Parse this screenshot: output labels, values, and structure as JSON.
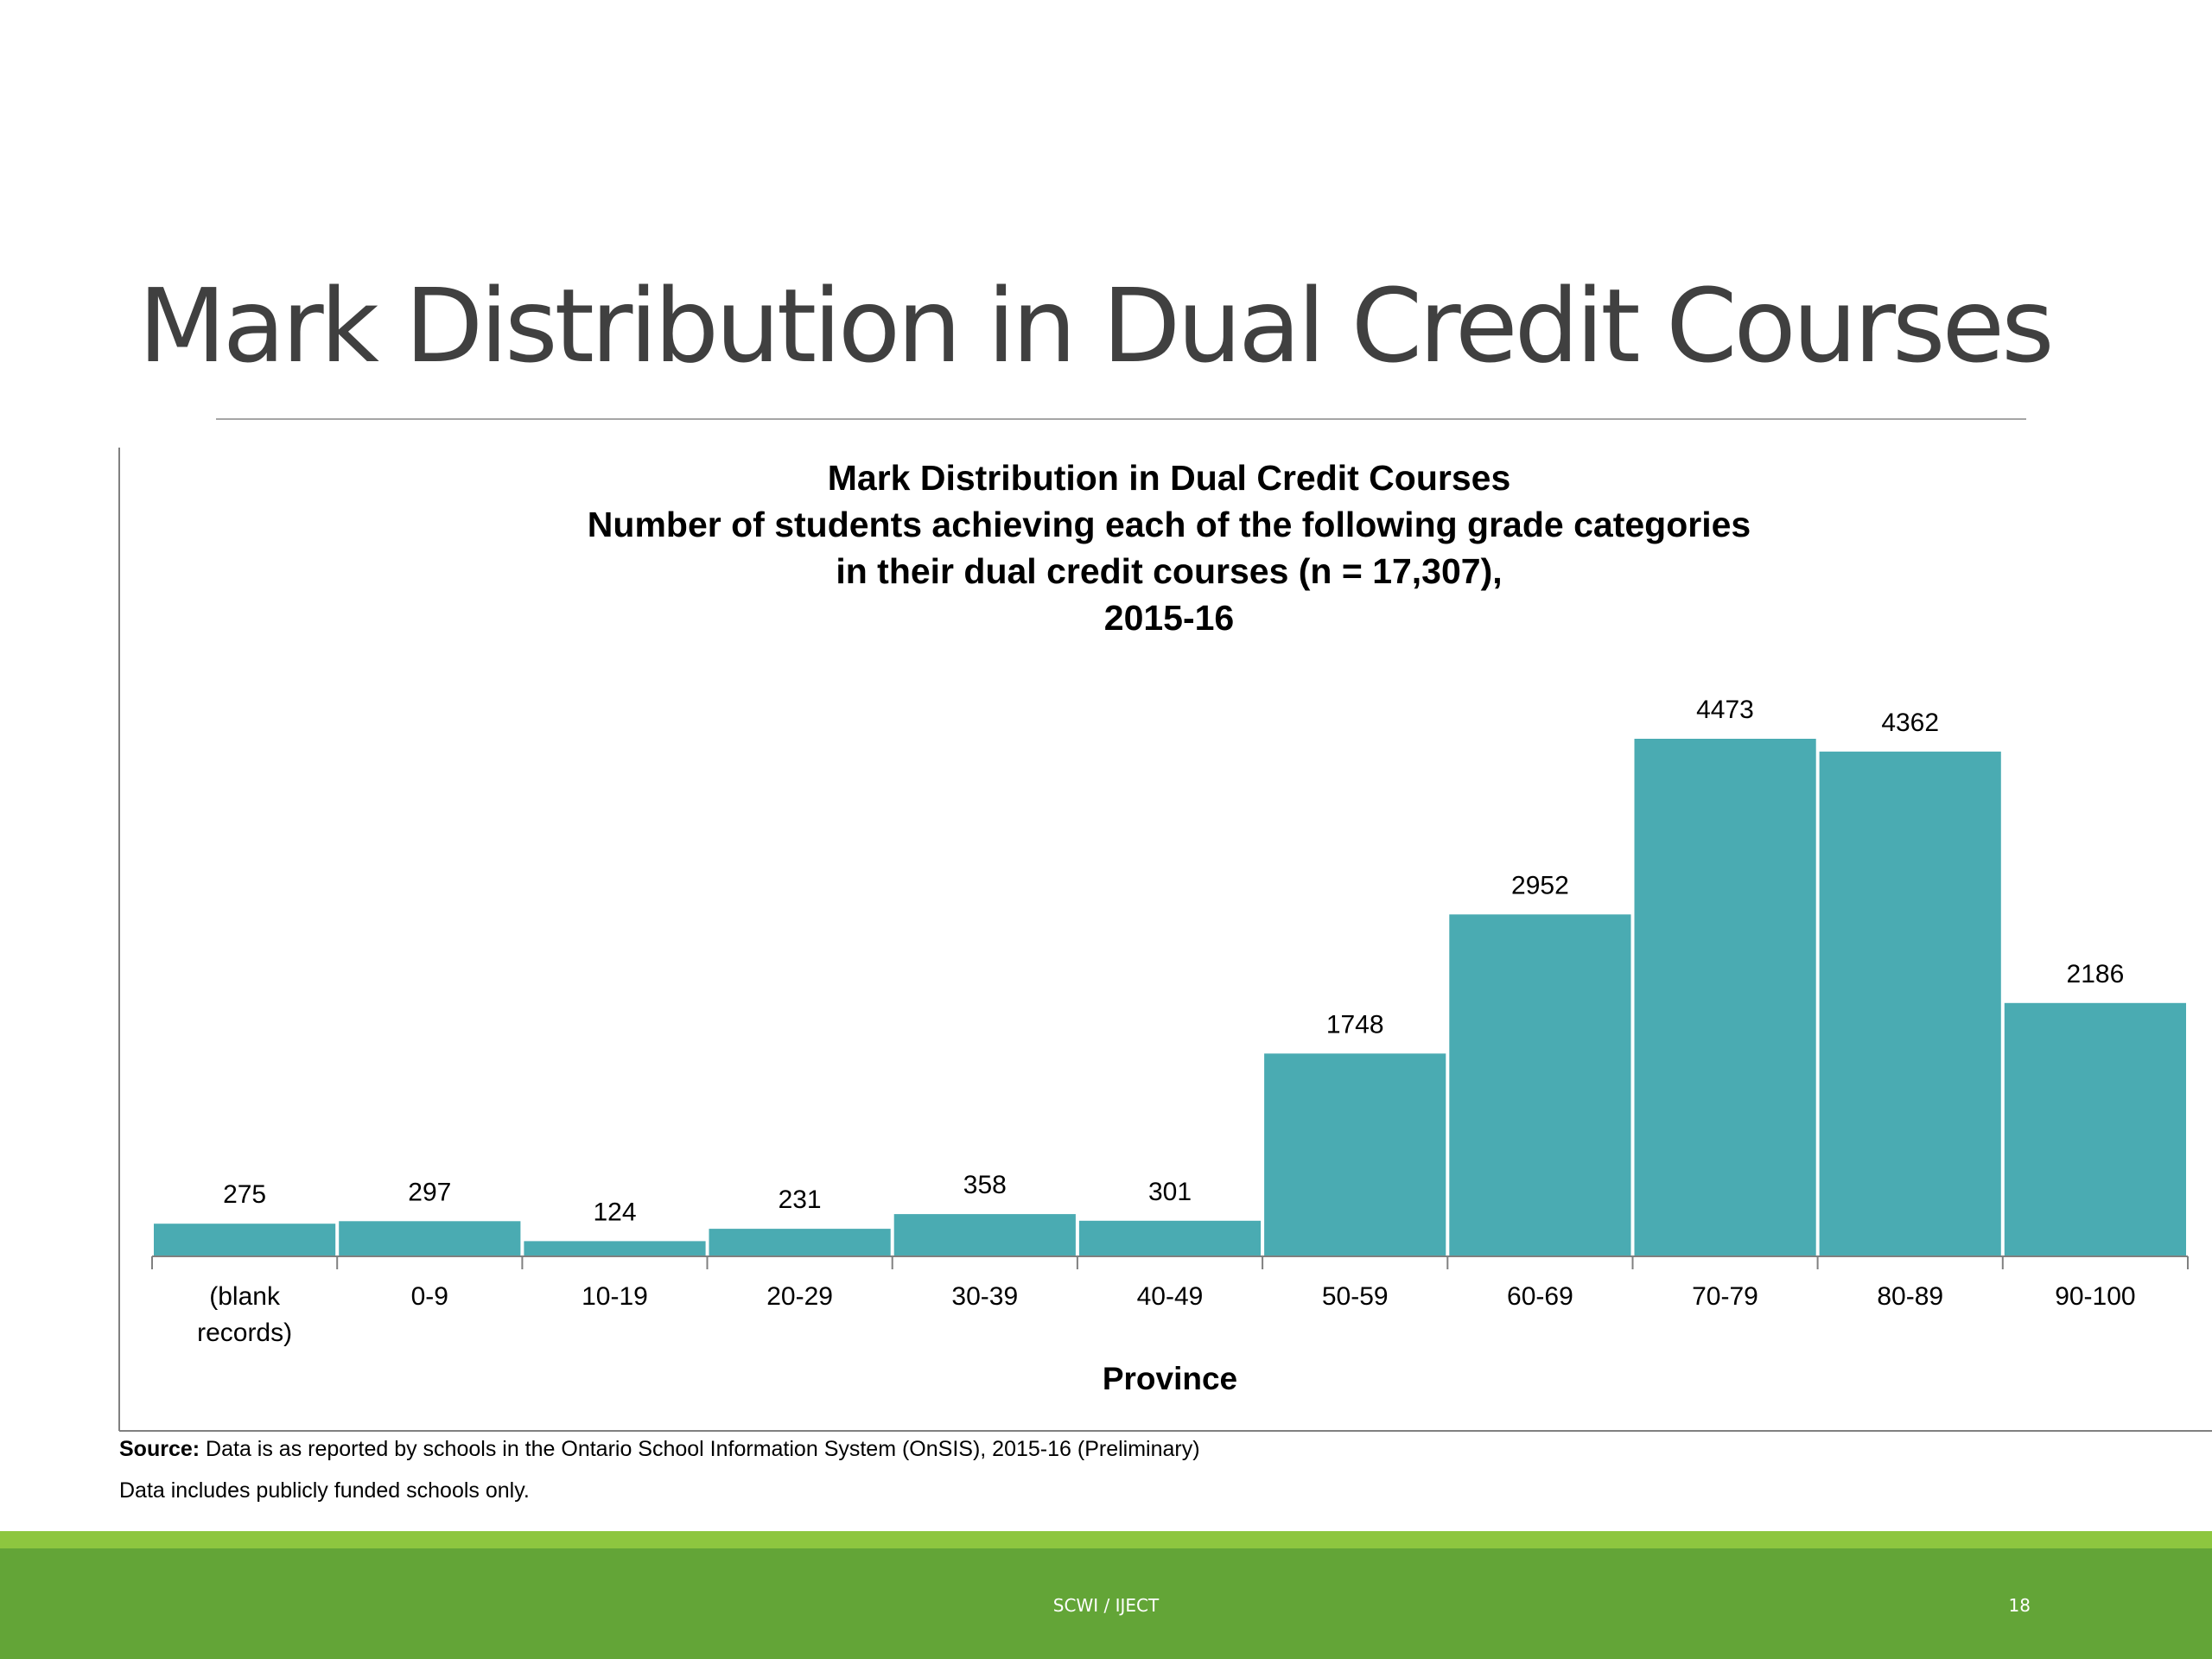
{
  "slide": {
    "title": "Mark Distribution in Dual Credit Courses",
    "footer_text": "SCWI / IJECT",
    "page_number": "18"
  },
  "notes": {
    "source_label": "Source:",
    "source_text": " Data is as reported by schools in the Ontario School Information System (OnSIS), 2015-16 (Preliminary)",
    "data_note": "Data includes publicly funded schools only."
  },
  "colors": {
    "bar": "#4aabb2",
    "footer_green": "#63a537",
    "footer_stripe": "#8dc63f",
    "title_gray": "#404040"
  },
  "chart_data": {
    "type": "bar",
    "title": "Mark Distribution in Dual Credit Courses",
    "subtitle_lines": [
      "Number of students achieving each of the following grade categories",
      "in their dual credit courses (n = 17,307),",
      "2015-16"
    ],
    "xlabel": "Province",
    "ylabel": "",
    "categories": [
      "(blank records)",
      "0-9",
      "10-19",
      "20-29",
      "30-39",
      "40-49",
      "50-59",
      "60-69",
      "70-79",
      "80-89",
      "90-100"
    ],
    "category_label_lines": [
      [
        "(blank",
        "records)"
      ],
      [
        "0-9"
      ],
      [
        "10-19"
      ],
      [
        "20-29"
      ],
      [
        "30-39"
      ],
      [
        "40-49"
      ],
      [
        "50-59"
      ],
      [
        "60-69"
      ],
      [
        "70-79"
      ],
      [
        "80-89"
      ],
      [
        "90-100"
      ]
    ],
    "values": [
      275,
      297,
      124,
      231,
      358,
      301,
      1748,
      2952,
      4473,
      4362,
      2186
    ],
    "ylim": [
      0,
      4473
    ],
    "grid": false,
    "legend": "none",
    "data_labels": true
  }
}
